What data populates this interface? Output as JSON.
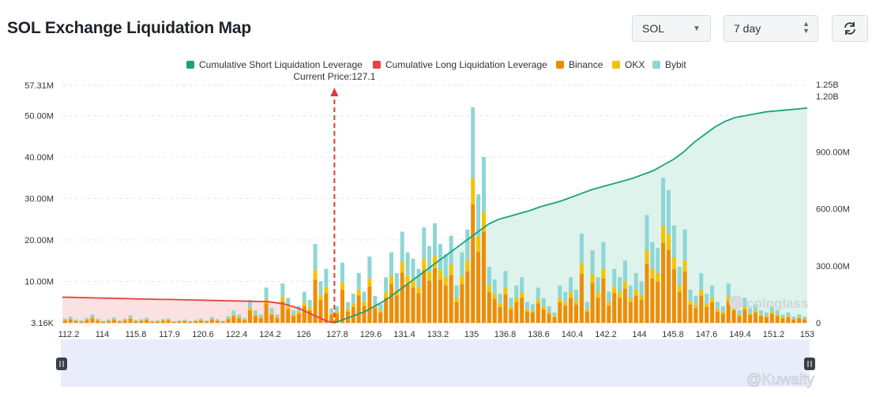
{
  "header": {
    "title": "SOL Exchange Liquidation Map",
    "symbol_select": "SOL",
    "period_select": "7 day",
    "refresh_icon": "refresh-icon"
  },
  "annotation": {
    "current_price_label": "Current Price:127.1"
  },
  "watermarks": {
    "brand": "coinglass",
    "credit": "@Kuwaity"
  },
  "colors": {
    "short_line": "#1aa17f",
    "short_fill": "#ddf3ec",
    "long_line": "#e8413f",
    "long_fill": "#fbe1e1",
    "binance": "#f08c00",
    "okx": "#f5c200",
    "bybit": "#8ed6d6",
    "current_price_line": "#e53935"
  },
  "chart_data": {
    "type": "bar",
    "legend": [
      {
        "name": "Cumulative Short Liquidation Leverage",
        "color": "#1aa17f"
      },
      {
        "name": "Cumulative Long Liquidation Leverage",
        "color": "#e8413f"
      },
      {
        "name": "Binance",
        "color": "#f08c00"
      },
      {
        "name": "OKX",
        "color": "#f5c200"
      },
      {
        "name": "Bybit",
        "color": "#8ed6d6"
      }
    ],
    "x_range": [
      112.2,
      153
    ],
    "x_ticks": [
      "112.2",
      "114",
      "115.8",
      "117.9",
      "120.6",
      "122.4",
      "124.2",
      "126",
      "127.8",
      "129.6",
      "131.4",
      "133.2",
      "135",
      "136.8",
      "138.6",
      "140.4",
      "142.2",
      "144",
      "145.8",
      "147.6",
      "149.4",
      "151.2",
      "153"
    ],
    "y_left_ticks": [
      "3.16K",
      "10.00M",
      "20.00M",
      "30.00M",
      "40.00M",
      "50.00M",
      "57.31M"
    ],
    "y_left_range": [
      0,
      57.31
    ],
    "y_right_ticks": [
      "0",
      "300.00M",
      "600.00M",
      "900.00M",
      "1.20B",
      "1.25B"
    ],
    "y_right_range": [
      0,
      1250
    ],
    "current_price": 127.1,
    "bars_total_M": [
      1.0,
      1.5,
      0.8,
      0.6,
      1.2,
      2.0,
      1.0,
      0.5,
      0.8,
      1.3,
      0.6,
      1.0,
      1.8,
      0.7,
      0.9,
      1.2,
      0.5,
      0.6,
      0.9,
      1.1,
      0.4,
      0.6,
      0.8,
      0.5,
      0.7,
      1.0,
      0.6,
      1.4,
      0.9,
      0.5,
      1.6,
      3.0,
      2.0,
      1.2,
      5.5,
      3.0,
      2.0,
      8.5,
      3.5,
      2.0,
      9.5,
      6.0,
      3.0,
      4.0,
      7.5,
      5.5,
      19.0,
      10.0,
      13.0,
      3.5,
      4.0,
      14.5,
      5.0,
      7.0,
      12.0,
      7.5,
      16.0,
      6.5,
      4.5,
      11.0,
      17.0,
      12.0,
      22.0,
      17.0,
      15.5,
      13.0,
      23.0,
      18.5,
      24.0,
      19.0,
      16.5,
      21.0,
      9.0,
      17.0,
      22.5,
      52.0,
      31.0,
      40.0,
      13.5,
      10.5,
      7.0,
      12.5,
      6.0,
      9.0,
      11.0,
      5.0,
      4.5,
      8.5,
      6.0,
      4.0,
      2.5,
      9.0,
      7.5,
      11.0,
      8.0,
      21.5,
      5.0,
      17.5,
      11.0,
      19.5,
      7.5,
      13.0,
      11.0,
      15.0,
      9.0,
      12.0,
      10.0,
      26.0,
      19.5,
      18.0,
      35.0,
      32.0,
      23.5,
      13.5,
      22.5,
      8.0,
      6.5,
      12.0,
      7.0,
      9.0,
      5.0,
      4.0,
      9.5,
      5.5,
      3.0,
      6.0,
      3.5,
      4.5,
      3.0,
      2.5,
      4.0,
      3.0,
      2.0,
      2.5,
      1.5,
      2.0,
      1.5
    ],
    "long_cumulative_M": [
      135,
      134,
      133,
      132,
      131,
      130,
      129,
      128,
      127,
      126,
      125,
      124,
      123,
      123,
      122,
      121,
      120,
      119,
      118,
      117,
      116,
      115,
      114,
      113,
      112,
      111,
      105,
      98,
      85,
      70,
      50,
      30,
      10,
      0
    ],
    "short_cumulative_M": [
      0,
      20,
      40,
      60,
      90,
      120,
      160,
      200,
      240,
      280,
      320,
      360,
      400,
      440,
      480,
      520,
      545,
      560,
      575,
      590,
      610,
      625,
      640,
      660,
      680,
      700,
      715,
      730,
      745,
      760,
      780,
      800,
      830,
      860,
      900,
      950,
      990,
      1030,
      1060,
      1080,
      1090,
      1100,
      1110,
      1115,
      1120,
      1125,
      1130
    ]
  }
}
